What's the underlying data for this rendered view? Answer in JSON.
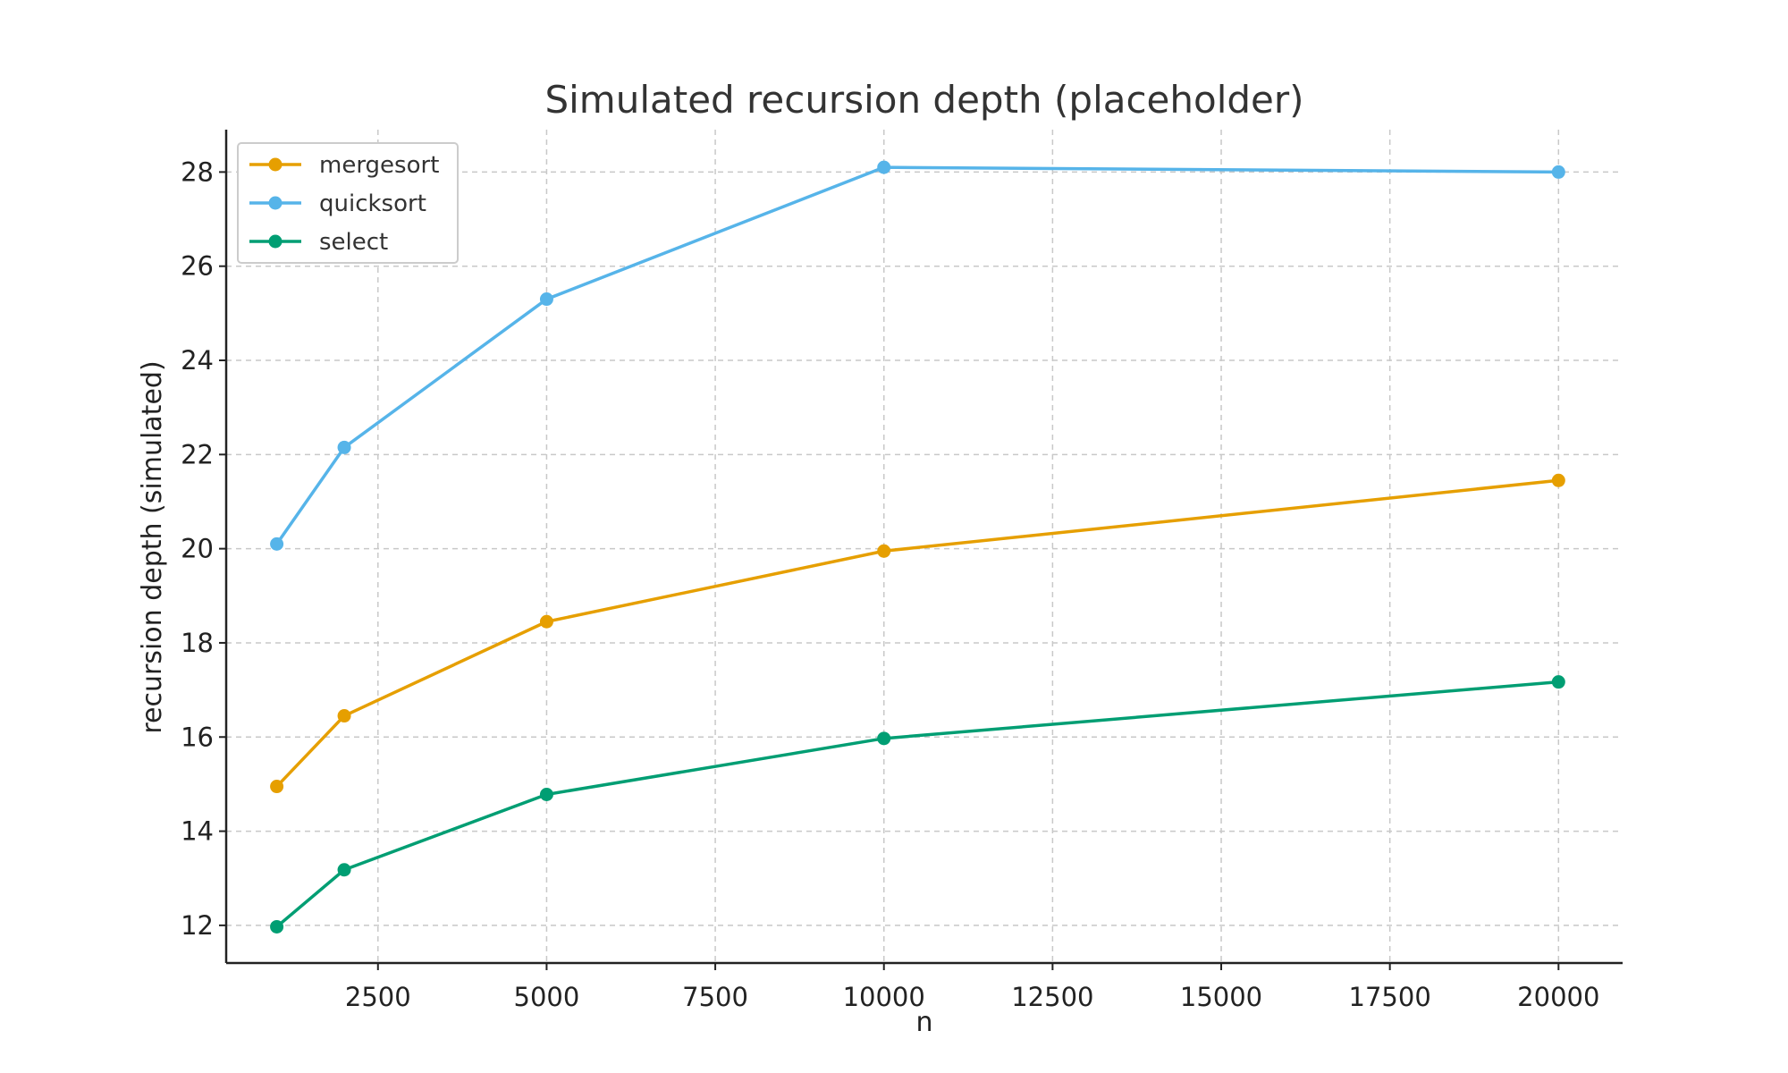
{
  "chart_data": {
    "type": "line",
    "title": "Simulated recursion depth (placeholder)",
    "xlabel": "n",
    "ylabel": "recursion depth (simulated)",
    "x": [
      1000,
      2000,
      5000,
      10000,
      20000
    ],
    "xlim": [
      250,
      20950
    ],
    "ylim": [
      11.2,
      28.9
    ],
    "x_ticks": [
      2500,
      5000,
      7500,
      10000,
      12500,
      15000,
      17500,
      20000
    ],
    "y_ticks": [
      12,
      14,
      16,
      18,
      20,
      22,
      24,
      26,
      28
    ],
    "grid": true,
    "legend_position": "top-left",
    "series": [
      {
        "name": "mergesort",
        "color": "#E69F00",
        "values": [
          14.95,
          16.45,
          18.45,
          19.95,
          21.45
        ]
      },
      {
        "name": "quicksort",
        "color": "#56B4E9",
        "values": [
          20.1,
          22.15,
          25.3,
          28.1,
          28.0
        ]
      },
      {
        "name": "select",
        "color": "#009E73",
        "values": [
          11.97,
          13.18,
          14.78,
          15.97,
          17.17
        ]
      }
    ]
  }
}
